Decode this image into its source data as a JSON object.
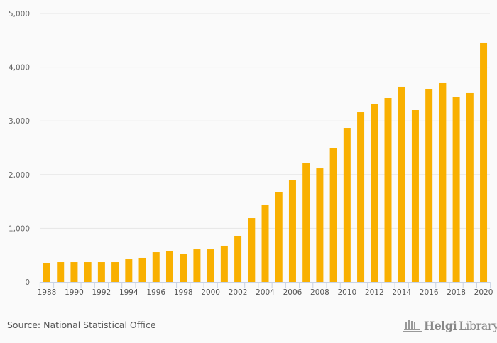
{
  "chart_data": {
    "type": "bar",
    "title": "",
    "xlabel": "",
    "ylabel": "",
    "ylim": [
      0,
      5000
    ],
    "yticks": [
      0,
      1000,
      2000,
      3000,
      4000,
      5000
    ],
    "ytick_labels": [
      "0",
      "1,000",
      "2,000",
      "3,000",
      "4,000",
      "5,000"
    ],
    "grid": true,
    "color": "#f9b000",
    "categories": [
      "1988",
      "1989",
      "1990",
      "1991",
      "1992",
      "1993",
      "1994",
      "1995",
      "1996",
      "1997",
      "1998",
      "1999",
      "2000",
      "2001",
      "2002",
      "2003",
      "2004",
      "2005",
      "2006",
      "2007",
      "2008",
      "2009",
      "2010",
      "2011",
      "2012",
      "2013",
      "2014",
      "2015",
      "2016",
      "2017",
      "2018",
      "2019",
      "2020"
    ],
    "xtick_labels": [
      "1988",
      "1990",
      "1992",
      "1994",
      "1996",
      "1998",
      "2000",
      "2002",
      "2004",
      "2006",
      "2008",
      "2010",
      "2012",
      "2014",
      "2016",
      "2018",
      "2020"
    ],
    "values": [
      344,
      370,
      370,
      370,
      370,
      370,
      423,
      450,
      555,
      582,
      529,
      608,
      608,
      675,
      860,
      1190,
      1442,
      1667,
      1892,
      2209,
      2116,
      2487,
      2870,
      3161,
      3320,
      3426,
      3638,
      3201,
      3598,
      3704,
      3439,
      3519,
      4458
    ]
  },
  "footer": {
    "source": "Source: National Statistical Office",
    "logo_bold": "Helgi",
    "logo_light": "Library."
  }
}
